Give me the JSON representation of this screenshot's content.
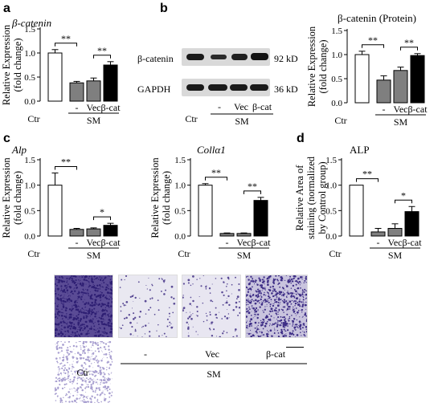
{
  "panel_labels": {
    "a": "a",
    "b": "b",
    "c": "c",
    "d": "d"
  },
  "chart_data": [
    {
      "id": "a",
      "type": "bar",
      "title": "β-catenin",
      "title_italic": true,
      "ylabel_lines": [
        "Relative Expression",
        "(fold change)"
      ],
      "ylim": [
        0,
        1.5
      ],
      "yticks": [
        "0.0",
        "0.5",
        "1.0",
        "1.5"
      ],
      "categories": [
        "Ctr",
        "-",
        "Vec",
        "β-cat"
      ],
      "values": [
        1.0,
        0.38,
        0.42,
        0.75
      ],
      "errors": [
        0.07,
        0.03,
        0.06,
        0.07
      ],
      "fill": [
        "#ffffff",
        "#7f7f7f",
        "#7f7f7f",
        "#000000"
      ],
      "group_label": "SM",
      "significance": [
        {
          "from": 0,
          "to": 1,
          "label": "**"
        },
        {
          "from": 2,
          "to": 3,
          "label": "**"
        }
      ]
    },
    {
      "id": "b",
      "type": "bar",
      "title": "β-catenin (Protein)",
      "title_italic": false,
      "ylabel_lines": [
        "Relative Expression",
        "(fold change)"
      ],
      "ylim": [
        0,
        1.5
      ],
      "yticks": [
        "0.0",
        "0.5",
        "1.0",
        "1.5"
      ],
      "categories": [
        "Ctr",
        "-",
        "Vec",
        "β-cat"
      ],
      "values": [
        1.0,
        0.47,
        0.67,
        0.98
      ],
      "errors": [
        0.07,
        0.09,
        0.07,
        0.04
      ],
      "fill": [
        "#ffffff",
        "#7f7f7f",
        "#7f7f7f",
        "#000000"
      ],
      "group_label": "SM",
      "significance": [
        {
          "from": 0,
          "to": 1,
          "label": "**"
        },
        {
          "from": 2,
          "to": 3,
          "label": "**"
        }
      ]
    },
    {
      "id": "c1",
      "type": "bar",
      "title": "Alp",
      "title_italic": true,
      "ylabel_lines": [
        "Relative Expression",
        "(fold change)"
      ],
      "ylim": [
        0,
        1.5
      ],
      "yticks": [
        "0.0",
        "0.5",
        "1.0",
        "1.5"
      ],
      "categories": [
        "Ctr",
        "-",
        "Vec",
        "β-cat"
      ],
      "values": [
        1.0,
        0.13,
        0.14,
        0.21
      ],
      "errors": [
        0.24,
        0.02,
        0.02,
        0.04
      ],
      "fill": [
        "#ffffff",
        "#7f7f7f",
        "#7f7f7f",
        "#000000"
      ],
      "group_label": "SM",
      "significance": [
        {
          "from": 0,
          "to": 1,
          "label": "**"
        },
        {
          "from": 2,
          "to": 3,
          "label": "*"
        }
      ]
    },
    {
      "id": "c2",
      "type": "bar",
      "title": "Collα1",
      "title_italic": true,
      "ylabel_lines": [
        "Relative Expression",
        "(fold change)"
      ],
      "ylim": [
        0,
        1.5
      ],
      "yticks": [
        "0.0",
        "0.5",
        "1.0",
        "1.5"
      ],
      "categories": [
        "Ctr",
        "-",
        "Vec",
        "β-cat"
      ],
      "values": [
        1.0,
        0.05,
        0.05,
        0.7
      ],
      "errors": [
        0.03,
        0.01,
        0.01,
        0.06
      ],
      "fill": [
        "#ffffff",
        "#7f7f7f",
        "#7f7f7f",
        "#000000"
      ],
      "group_label": "SM",
      "significance": [
        {
          "from": 0,
          "to": 1,
          "label": "**"
        },
        {
          "from": 2,
          "to": 3,
          "label": "**"
        }
      ]
    },
    {
      "id": "d",
      "type": "bar",
      "title": "ALP",
      "title_italic": false,
      "ylabel_lines": [
        "Relative Area of",
        "staining (normalized",
        "by Control group)"
      ],
      "ylim": [
        0,
        1.5
      ],
      "yticks": [
        "0.0",
        "0.5",
        "1.0",
        "1.5"
      ],
      "categories": [
        "Ctr",
        "-",
        "Vec",
        "β-cat"
      ],
      "values": [
        1.0,
        0.08,
        0.15,
        0.48
      ],
      "errors": [
        0.0,
        0.07,
        0.09,
        0.1
      ],
      "fill": [
        "#ffffff",
        "#7f7f7f",
        "#7f7f7f",
        "#000000"
      ],
      "group_label": "SM",
      "significance": [
        {
          "from": 0,
          "to": 1,
          "label": "**"
        },
        {
          "from": 2,
          "to": 3,
          "label": "*"
        }
      ]
    }
  ],
  "blot": {
    "bands": [
      {
        "name": "β-catenin",
        "size": "92 kD"
      },
      {
        "name": "GAPDH",
        "size": "36 kD"
      }
    ],
    "lanes": [
      "Ctr",
      "-",
      "Vec",
      "β-cat"
    ],
    "group_label": "SM"
  },
  "staining": {
    "lanes": [
      "Ctr",
      "-",
      "Vec",
      "β-cat"
    ],
    "group_label": "SM"
  }
}
